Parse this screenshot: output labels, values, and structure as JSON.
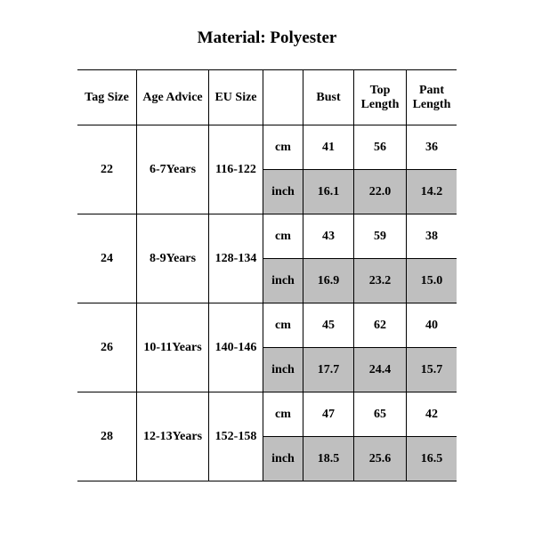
{
  "title": "Material: Polyester",
  "headers": {
    "tag": "Tag Size",
    "age": "Age Advice",
    "eu": "EU Size",
    "unit": "",
    "bust": "Bust",
    "top": "Top Length",
    "pant": "Pant Length"
  },
  "units": {
    "cm": "cm",
    "inch": "inch"
  },
  "rows": [
    {
      "tag": "22",
      "age": "6-7Years",
      "eu": "116-122",
      "cm": {
        "bust": "41",
        "top": "56",
        "pant": "36"
      },
      "inch": {
        "bust": "16.1",
        "top": "22.0",
        "pant": "14.2"
      }
    },
    {
      "tag": "24",
      "age": "8-9Years",
      "eu": "128-134",
      "cm": {
        "bust": "43",
        "top": "59",
        "pant": "38"
      },
      "inch": {
        "bust": "16.9",
        "top": "23.2",
        "pant": "15.0"
      }
    },
    {
      "tag": "26",
      "age": "10-11Years",
      "eu": "140-146",
      "cm": {
        "bust": "45",
        "top": "62",
        "pant": "40"
      },
      "inch": {
        "bust": "17.7",
        "top": "24.4",
        "pant": "15.7"
      }
    },
    {
      "tag": "28",
      "age": "12-13Years",
      "eu": "152-158",
      "cm": {
        "bust": "47",
        "top": "65",
        "pant": "42"
      },
      "inch": {
        "bust": "18.5",
        "top": "25.6",
        "pant": "16.5"
      }
    }
  ],
  "colors": {
    "shade": "#bfbfbf",
    "border": "#000000",
    "bg": "#ffffff",
    "text": "#000000"
  }
}
